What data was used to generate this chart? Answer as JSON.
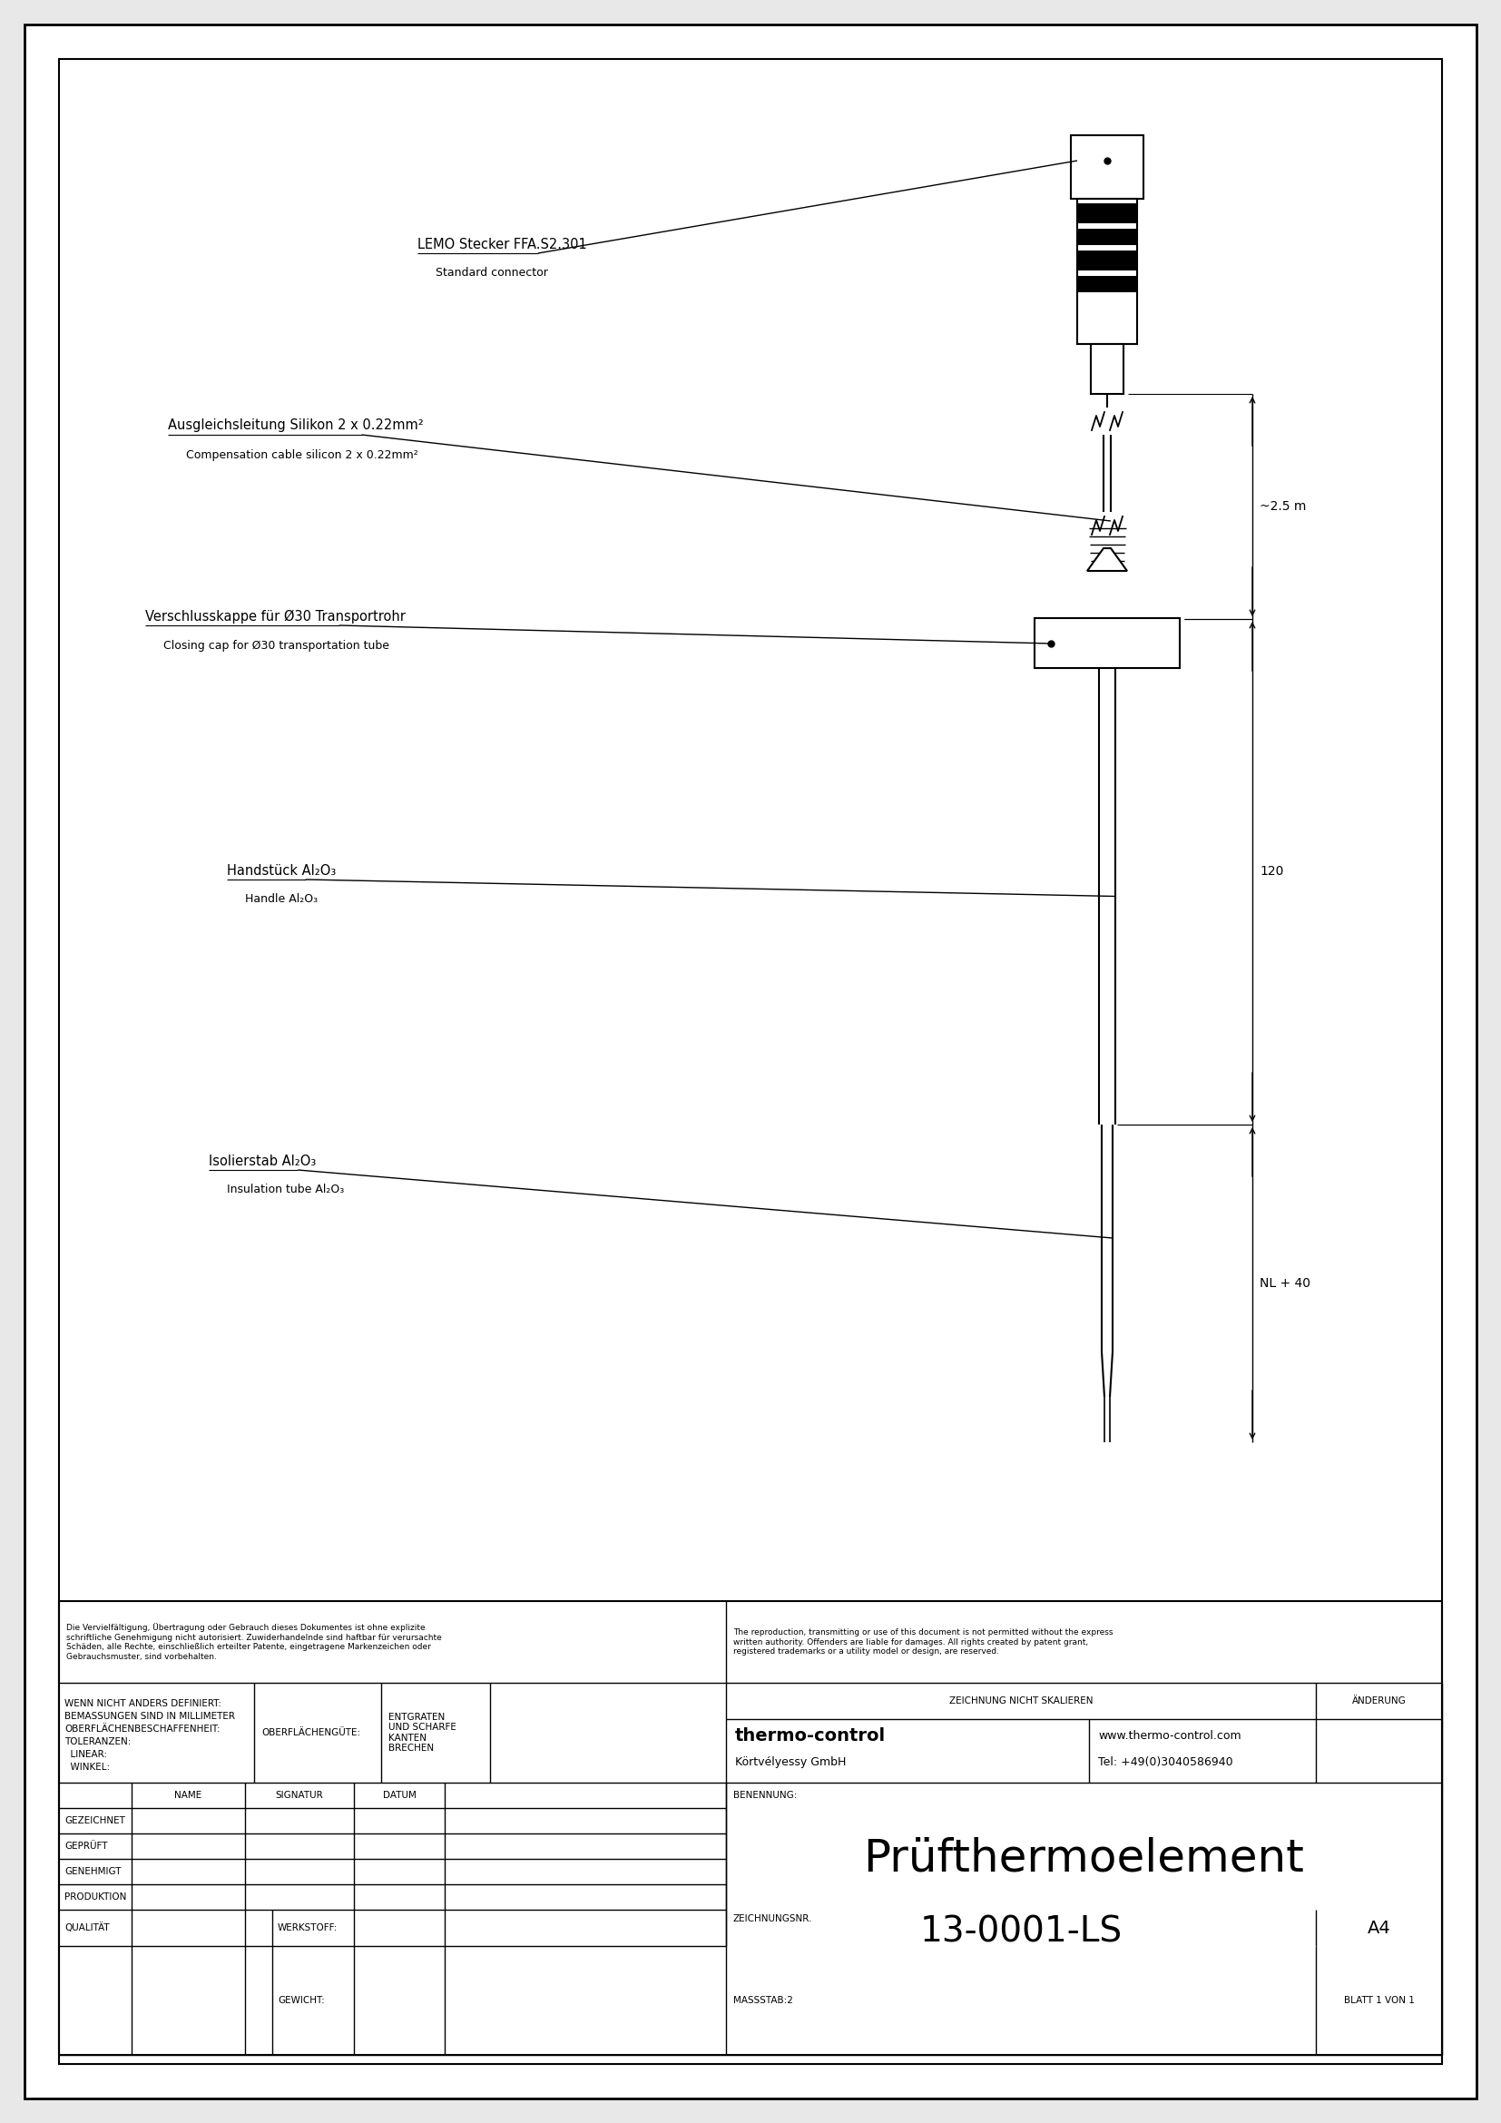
{
  "page_bg": "#e8e8e8",
  "line_color": "#000000",
  "title": "Prüfthermoelement",
  "drawing_number": "13-0001-LS",
  "company": "thermo-control",
  "company_sub": "Körtvélyessy GmbH",
  "website": "www.thermo-control.com",
  "tel": "Tel: +49(0)3040586940",
  "format": "A4",
  "scale": "MASSSTAB:2",
  "sheet": "BLATT 1 VON 1",
  "labels": {
    "lemo": "LEMO Stecker FFA.S2.301",
    "lemo_sub": "Standard connector",
    "cable": "Ausgleichsleitung Silikon 2 x 0.22mm²",
    "cable_sub": "Compensation cable silicon 2 x 0.22mm²",
    "cap": "Verschlusskappe für Ø30 Transportrohr",
    "cap_sub": "Closing cap for Ø30 transportation tube",
    "handle": "Handstück Al₂O₃",
    "handle_sub": "Handle Al₂O₃",
    "insulation": "Isolierstab Al₂O₃",
    "insulation_sub": "Insulation tube Al₂O₃"
  },
  "dim_25m": "~2.5 m",
  "dim_120": "120",
  "dim_nl40": "NL + 40",
  "copyright_de": "Die Vervielfältigung, Übertragung oder Gebrauch dieses Dokumentes ist ohne explizite\nschriftliche Genehmigung nicht autorisiert. Zuwiderhandelnde sind haftbar für verursachte\nSchäden, alle Rechte, einschließlich erteilter Patente, eingetragene Markenzeichen oder\nGebrauchsmuster, sind vorbehalten.",
  "copyright_en": "The reproduction, transmitting or use of this document is not permitted without the express\nwritten authority. Offenders are liable for damages. All rights created by patent grant,\nregistered trademarks or a utility model or design, are reserved.",
  "tb_left1": "WENN NICHT ANDERS DEFINIERT:",
  "tb_left2": "BEMASSUNGEN SIND IN MILLIMETER",
  "tb_left3": "OBERFLÄCHENBESCHAFFENHEIT:",
  "tb_left4": "TOLERANZEN:",
  "tb_left5": "  LINEAR:",
  "tb_left6": "  WINKEL:",
  "tb_oberfl": "OBERFLÄCHENGÜTE:",
  "tb_entgraten": "ENTGRATEN\nUND SCHARFE\nKANTEN\nBRECHEN",
  "tb_zeichnung": "ZEICHNUNG NICHT SKALIEREN",
  "tb_aenderung": "ÄNDERUNG",
  "tb_name": "NAME",
  "tb_signatur": "SIGNATUR",
  "tb_datum": "DATUM",
  "tb_gezeichnet": "GEZEICHNET",
  "tb_geprueft": "GEPRÜFT",
  "tb_genehmigt": "GENEHMIGT",
  "tb_produktion": "PRODUKTION",
  "tb_qualitaet": "QUALITÄT",
  "tb_werkstoff": "WERKSTOFF:",
  "tb_gewicht": "GEWICHT:",
  "tb_benennung": "BENENNUNG:",
  "tb_zeichnungsnr": "ZEICHNUNGSNR."
}
